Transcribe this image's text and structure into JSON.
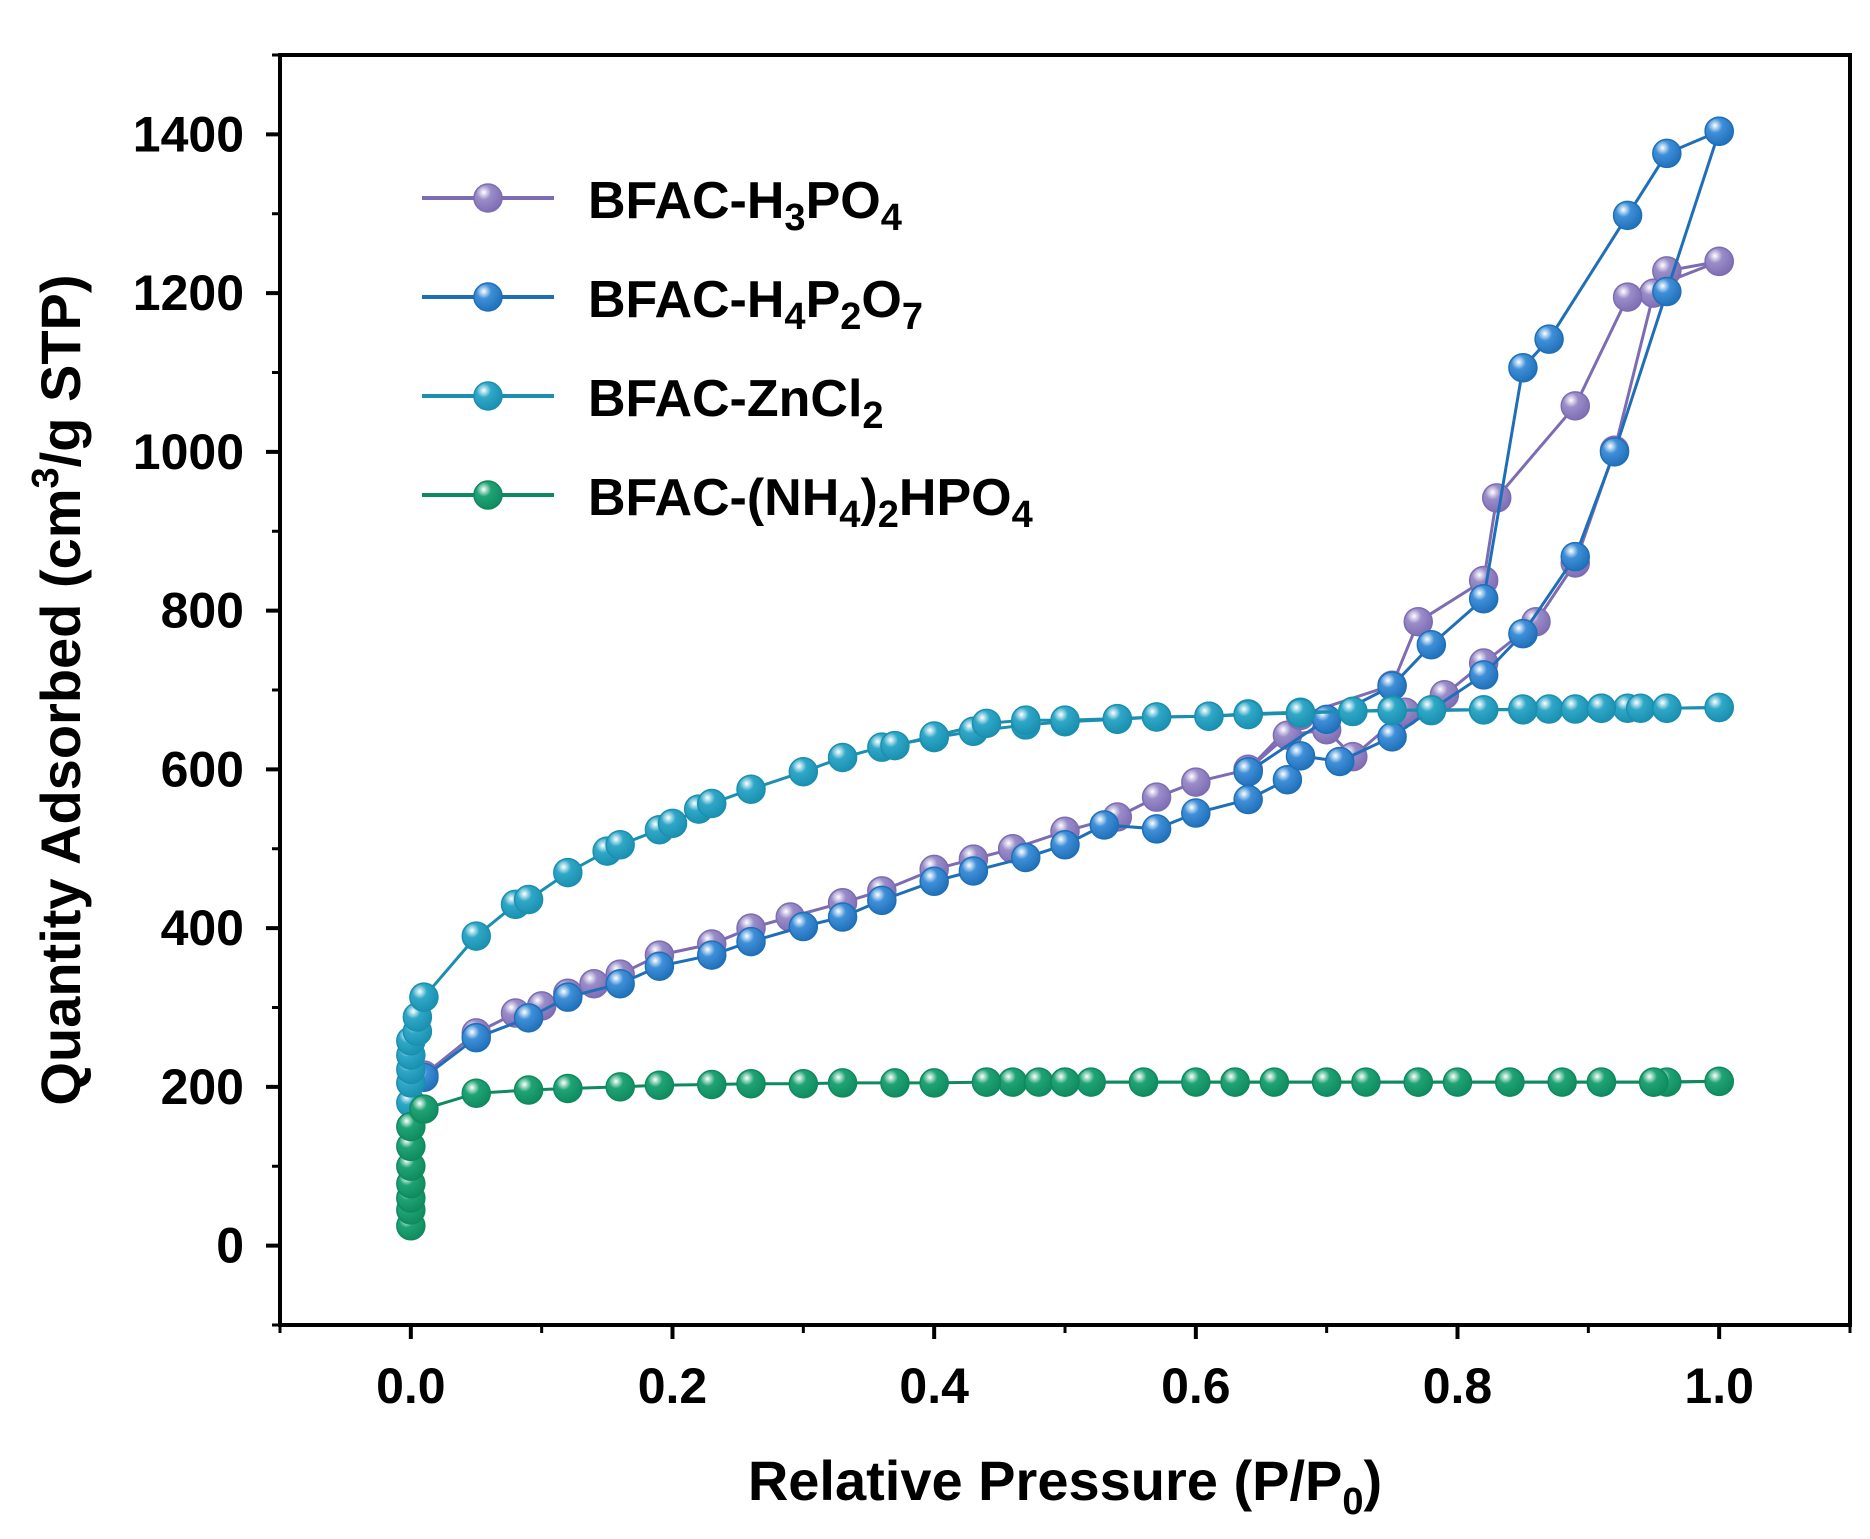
{
  "chart_data": {
    "type": "line",
    "title": "",
    "xlabel": {
      "main": "Relative Pressure (P/P",
      "sub": "0",
      "tail": ")"
    },
    "ylabel": {
      "main": "Quantity Adsorbed (cm",
      "sup": "3",
      "tail": "/g STP)"
    },
    "xlim": [
      -0.1,
      1.1
    ],
    "ylim": [
      -100,
      1500
    ],
    "xticks": [
      0.0,
      0.2,
      0.4,
      0.6,
      0.8,
      1.0
    ],
    "xtick_labels": [
      "0.0",
      "0.2",
      "0.4",
      "0.6",
      "0.8",
      "1.0"
    ],
    "yticks": [
      0,
      200,
      400,
      600,
      800,
      1000,
      1200,
      1400
    ],
    "ytick_labels": [
      "0",
      "200",
      "400",
      "600",
      "800",
      "1000",
      "1200",
      "1400"
    ],
    "grid": false,
    "legend_position": "top-left",
    "series": [
      {
        "name": "BFAC-H3PO4",
        "label_parts": [
          [
            "BFAC-H",
            ""
          ],
          [
            "3",
            "sub"
          ],
          [
            "PO",
            ""
          ],
          [
            "4",
            "sub"
          ]
        ],
        "color": "#7d6cb3",
        "fill": "#9a8cc8",
        "adsorption": [
          [
            0.01,
            215
          ],
          [
            0.05,
            268
          ],
          [
            0.08,
            293
          ],
          [
            0.1,
            302
          ],
          [
            0.12,
            318
          ],
          [
            0.14,
            330
          ],
          [
            0.16,
            342
          ],
          [
            0.19,
            366
          ],
          [
            0.23,
            380
          ],
          [
            0.26,
            400
          ],
          [
            0.29,
            414
          ],
          [
            0.33,
            432
          ],
          [
            0.36,
            447
          ],
          [
            0.4,
            474
          ],
          [
            0.43,
            487
          ],
          [
            0.46,
            500
          ],
          [
            0.5,
            522
          ],
          [
            0.54,
            540
          ],
          [
            0.57,
            565
          ],
          [
            0.6,
            584
          ],
          [
            0.64,
            600
          ],
          [
            0.67,
            643
          ],
          [
            0.7,
            650
          ],
          [
            0.72,
            616
          ],
          [
            0.76,
            672
          ],
          [
            0.79,
            694
          ],
          [
            0.82,
            734
          ],
          [
            0.86,
            786
          ],
          [
            0.89,
            860
          ],
          [
            0.92,
            1002
          ],
          [
            0.95,
            1200
          ],
          [
            0.96,
            1228
          ],
          [
            1.0,
            1240
          ]
        ],
        "desorption": [
          [
            1.0,
            1240
          ],
          [
            0.93,
            1195
          ],
          [
            0.89,
            1058
          ],
          [
            0.83,
            942
          ],
          [
            0.82,
            838
          ],
          [
            0.77,
            786
          ],
          [
            0.75,
            706
          ],
          [
            0.68,
            668
          ],
          [
            0.64,
            600
          ]
        ]
      },
      {
        "name": "BFAC-H4P2O7",
        "label_parts": [
          [
            "BFAC-H",
            ""
          ],
          [
            "4",
            "sub"
          ],
          [
            "P",
            ""
          ],
          [
            "2",
            "sub"
          ],
          [
            "O",
            ""
          ],
          [
            "7",
            "sub"
          ]
        ],
        "color": "#1f6fb8",
        "fill": "#3f8fd8",
        "adsorption": [
          [
            0.01,
            212
          ],
          [
            0.05,
            262
          ],
          [
            0.09,
            287
          ],
          [
            0.12,
            313
          ],
          [
            0.16,
            330
          ],
          [
            0.19,
            352
          ],
          [
            0.23,
            366
          ],
          [
            0.26,
            383
          ],
          [
            0.3,
            402
          ],
          [
            0.33,
            414
          ],
          [
            0.36,
            435
          ],
          [
            0.4,
            459
          ],
          [
            0.43,
            472
          ],
          [
            0.47,
            489
          ],
          [
            0.5,
            505
          ],
          [
            0.53,
            530
          ],
          [
            0.57,
            525
          ],
          [
            0.6,
            545
          ],
          [
            0.64,
            562
          ],
          [
            0.67,
            587
          ],
          [
            0.68,
            617
          ],
          [
            0.71,
            610
          ],
          [
            0.75,
            641
          ],
          [
            0.78,
            675
          ],
          [
            0.82,
            719
          ],
          [
            0.85,
            771
          ],
          [
            0.89,
            868
          ],
          [
            0.92,
            1000
          ],
          [
            0.96,
            1202
          ],
          [
            1.0,
            1404
          ]
        ],
        "desorption": [
          [
            1.0,
            1404
          ],
          [
            0.96,
            1376
          ],
          [
            0.93,
            1298
          ],
          [
            0.87,
            1142
          ],
          [
            0.85,
            1106
          ],
          [
            0.82,
            815
          ],
          [
            0.78,
            757
          ],
          [
            0.75,
            705
          ],
          [
            0.7,
            663
          ],
          [
            0.64,
            597
          ]
        ]
      },
      {
        "name": "BFAC-ZnCl2",
        "label_parts": [
          [
            "BFAC-ZnCl",
            ""
          ],
          [
            "2",
            "sub"
          ]
        ],
        "color": "#1a8fb0",
        "fill": "#2fa7c7",
        "adsorption": [
          [
            0.0,
            180
          ],
          [
            0.0,
            205
          ],
          [
            0.0,
            222
          ],
          [
            0.0,
            240
          ],
          [
            0.0,
            258
          ],
          [
            0.005,
            270
          ],
          [
            0.005,
            288
          ],
          [
            0.01,
            313
          ],
          [
            0.05,
            390
          ],
          [
            0.08,
            430
          ],
          [
            0.09,
            436
          ],
          [
            0.12,
            470
          ],
          [
            0.15,
            497
          ],
          [
            0.16,
            505
          ],
          [
            0.19,
            524
          ],
          [
            0.2,
            532
          ],
          [
            0.22,
            550
          ],
          [
            0.23,
            557
          ],
          [
            0.26,
            575
          ],
          [
            0.3,
            597
          ],
          [
            0.33,
            615
          ],
          [
            0.36,
            628
          ],
          [
            0.4,
            640
          ],
          [
            0.43,
            648
          ],
          [
            0.47,
            656
          ],
          [
            0.5,
            660
          ],
          [
            0.54,
            663
          ],
          [
            0.57,
            666
          ],
          [
            0.61,
            667
          ],
          [
            0.64,
            670
          ],
          [
            0.68,
            672
          ],
          [
            0.72,
            673
          ],
          [
            0.75,
            675
          ],
          [
            0.78,
            674
          ],
          [
            0.82,
            675
          ],
          [
            0.85,
            675
          ],
          [
            0.87,
            676
          ],
          [
            0.89,
            676
          ],
          [
            0.91,
            677
          ],
          [
            0.93,
            677
          ],
          [
            0.94,
            677
          ],
          [
            0.96,
            677
          ],
          [
            1.0,
            678
          ]
        ],
        "desorption": [
          [
            1.0,
            678
          ],
          [
            0.96,
            677
          ],
          [
            0.91,
            677
          ],
          [
            0.85,
            676
          ],
          [
            0.82,
            675
          ],
          [
            0.78,
            675
          ],
          [
            0.75,
            674
          ],
          [
            0.72,
            673
          ],
          [
            0.68,
            671
          ],
          [
            0.64,
            669
          ],
          [
            0.61,
            667
          ],
          [
            0.57,
            666
          ],
          [
            0.54,
            664
          ],
          [
            0.5,
            662
          ],
          [
            0.47,
            662
          ],
          [
            0.44,
            658
          ],
          [
            0.4,
            642
          ],
          [
            0.37,
            630
          ]
        ]
      },
      {
        "name": "BFAC-(NH4)2HPO4",
        "label_parts": [
          [
            "BFAC-(NH",
            ""
          ],
          [
            "4",
            "sub"
          ],
          [
            ")",
            ""
          ],
          [
            "2",
            "sub"
          ],
          [
            "HPO",
            ""
          ],
          [
            "4",
            "sub"
          ]
        ],
        "color": "#0f8a5f",
        "fill": "#1fa374",
        "adsorption": [
          [
            0.0,
            25
          ],
          [
            0.0,
            45
          ],
          [
            0.0,
            60
          ],
          [
            0.0,
            78
          ],
          [
            0.0,
            100
          ],
          [
            0.0,
            125
          ],
          [
            0.0,
            150
          ],
          [
            0.01,
            172
          ],
          [
            0.05,
            192
          ],
          [
            0.09,
            196
          ],
          [
            0.12,
            198
          ],
          [
            0.16,
            200
          ],
          [
            0.19,
            202
          ],
          [
            0.23,
            203
          ],
          [
            0.26,
            204
          ],
          [
            0.3,
            204
          ],
          [
            0.33,
            205
          ],
          [
            0.37,
            205
          ],
          [
            0.4,
            205
          ],
          [
            0.44,
            206
          ],
          [
            0.46,
            206
          ],
          [
            0.48,
            206
          ],
          [
            0.5,
            206
          ],
          [
            0.52,
            206
          ],
          [
            0.56,
            206
          ],
          [
            0.6,
            206
          ],
          [
            0.63,
            206
          ],
          [
            0.66,
            206
          ],
          [
            0.7,
            206
          ],
          [
            0.73,
            206
          ],
          [
            0.77,
            206
          ],
          [
            0.8,
            206
          ],
          [
            0.84,
            206
          ],
          [
            0.88,
            206
          ],
          [
            0.91,
            206
          ],
          [
            0.95,
            206
          ],
          [
            0.96,
            206
          ],
          [
            1.0,
            207
          ]
        ],
        "desorption": [
          [
            1.0,
            207
          ],
          [
            0.95,
            206
          ],
          [
            0.91,
            206
          ],
          [
            0.84,
            206
          ],
          [
            0.77,
            206
          ],
          [
            0.7,
            206
          ],
          [
            0.63,
            206
          ],
          [
            0.56,
            206
          ],
          [
            0.5,
            206
          ],
          [
            0.44,
            206
          ]
        ]
      }
    ]
  }
}
